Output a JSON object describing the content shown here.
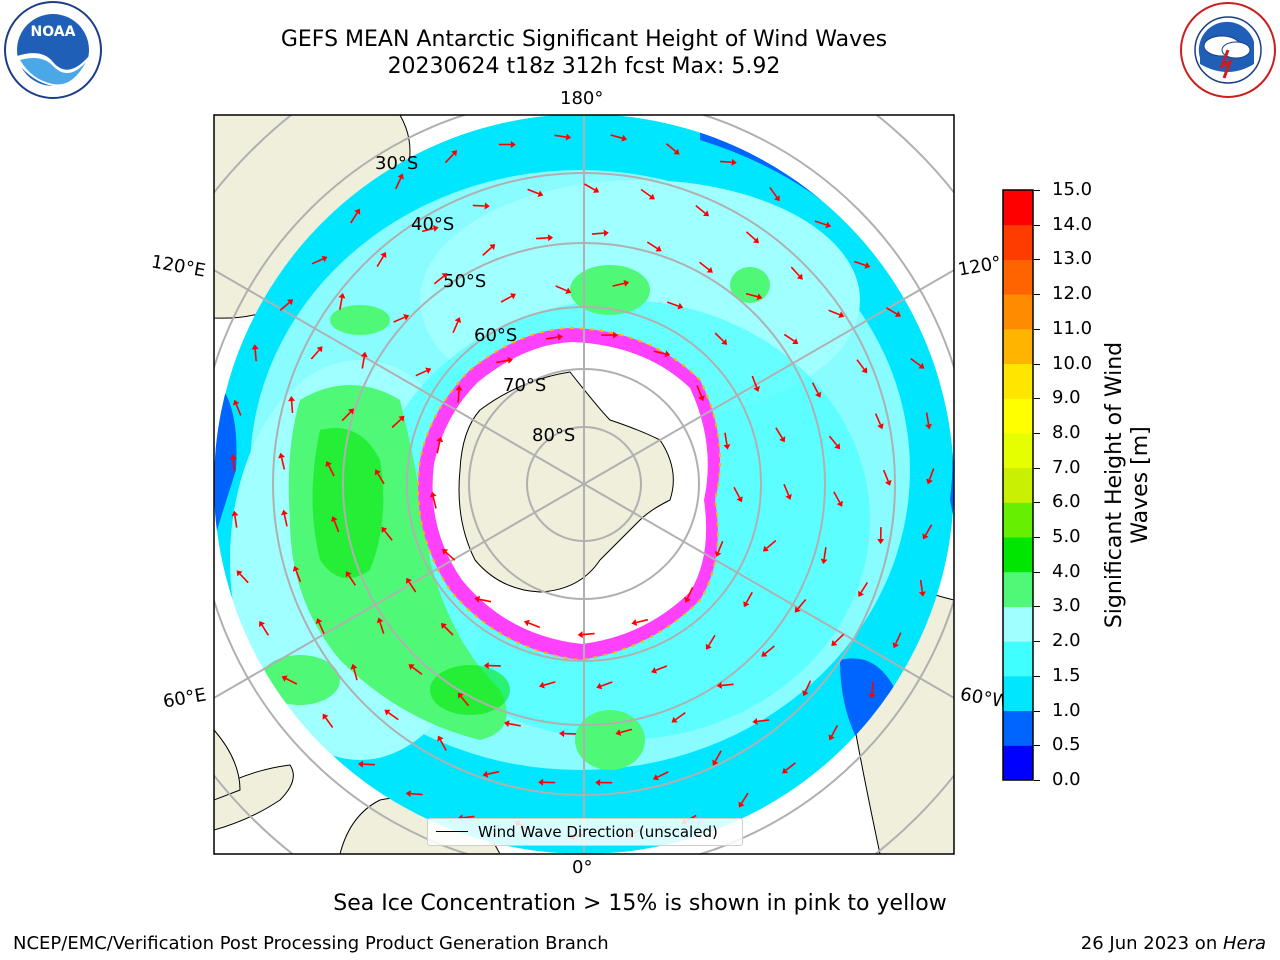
{
  "title": {
    "line1": "GEFS MEAN Antarctic Significant Height of Wind Waves",
    "line2": "20230624 t18z 312h fcst   Max: 5.92"
  },
  "logos": {
    "left": {
      "name": "noaa-logo",
      "text": "NOAA",
      "ring_text": "NATIONAL OCEANIC AND ATMOSPHERIC ADMINISTRATION · U.S. DEPARTMENT OF COMMERCE"
    },
    "right": {
      "name": "nws-logo",
      "ring_text": "NATIONAL WEATHER SERVICE"
    }
  },
  "map": {
    "projection": "south-polar-stereographic",
    "longitude_labels": {
      "top": "180°",
      "bottom": "0°",
      "left_upper": "120°E",
      "left_lower": "60°E",
      "right_upper": "120°",
      "right_lower": "60°W"
    },
    "latitude_labels": [
      "30°S",
      "40°S",
      "50°S",
      "60°S",
      "70°S",
      "80°S"
    ],
    "legend": "Wind Wave Direction (unscaled)"
  },
  "colorbar": {
    "label": "Significant Height of Wind Waves [m]",
    "ticks": [
      "0.0",
      "0.5",
      "1.0",
      "1.5",
      "2.0",
      "3.0",
      "4.0",
      "5.0",
      "6.0",
      "7.0",
      "8.0",
      "9.0",
      "10.0",
      "11.0",
      "12.0",
      "13.0",
      "14.0",
      "15.0"
    ],
    "colors": [
      "#0000ff",
      "#0064ff",
      "#00e6ff",
      "#40ffff",
      "#a0ffff",
      "#50f878",
      "#00e600",
      "#64f000",
      "#c8f000",
      "#e6ff00",
      "#ffff00",
      "#ffe600",
      "#ffb400",
      "#ff8c00",
      "#ff6400",
      "#ff3c00",
      "#ff0000"
    ]
  },
  "chart_data": {
    "type": "heatmap",
    "title": "GEFS MEAN Antarctic Significant Height of Wind Waves",
    "subtitle": "20230624 t18z 312h fcst   Max: 5.92",
    "variable": "Significant Height of Wind Waves [m]",
    "max_value": 5.92,
    "color_scale_range": [
      0.0,
      15.0
    ],
    "overlays": [
      "Wind Wave Direction (unscaled)",
      "Sea Ice Concentration > 15%"
    ]
  },
  "footer": {
    "note": "Sea Ice Concentration > 15% is shown in pink to yellow",
    "left": "NCEP/EMC/Verification Post Processing Product Generation Branch",
    "right_prefix": "26 Jun 2023 on ",
    "right_host": "Hera"
  }
}
